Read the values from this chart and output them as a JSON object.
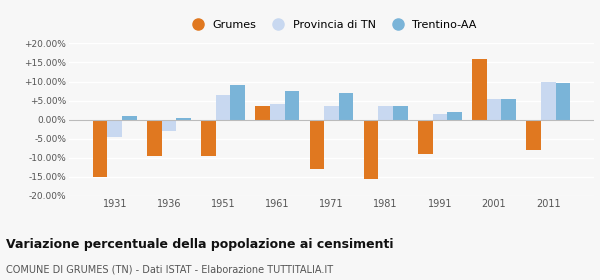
{
  "years": [
    1931,
    1936,
    1951,
    1961,
    1971,
    1981,
    1991,
    2001,
    2011
  ],
  "grumes": [
    -15.0,
    -9.5,
    -9.5,
    3.5,
    -13.0,
    -15.5,
    -9.0,
    16.0,
    -8.0
  ],
  "provincia_tn": [
    -4.5,
    -3.0,
    6.5,
    4.0,
    3.5,
    3.5,
    1.5,
    5.5,
    10.0
  ],
  "trentino_aa": [
    1.0,
    0.5,
    9.0,
    7.5,
    7.0,
    3.5,
    2.0,
    5.5,
    9.5
  ],
  "grumes_color": "#e07820",
  "provincia_color": "#c8d8f0",
  "trentino_color": "#7ab4d8",
  "bg_color": "#f7f7f7",
  "grid_color": "#ffffff",
  "ylim": [
    -20,
    20
  ],
  "yticks": [
    -20,
    -15,
    -10,
    -5,
    0,
    5,
    10,
    15,
    20
  ],
  "ytick_labels": [
    "-20.00%",
    "-15.00%",
    "-10.00%",
    "-5.00%",
    "0.00%",
    "+5.00%",
    "+10.00%",
    "+15.00%",
    "+20.00%"
  ],
  "title": "Variazione percentuale della popolazione ai censimenti",
  "subtitle": "COMUNE DI GRUMES (TN) - Dati ISTAT - Elaborazione TUTTITALIA.IT",
  "legend_labels": [
    "Grumes",
    "Provincia di TN",
    "Trentino-AA"
  ],
  "bar_width": 0.27
}
